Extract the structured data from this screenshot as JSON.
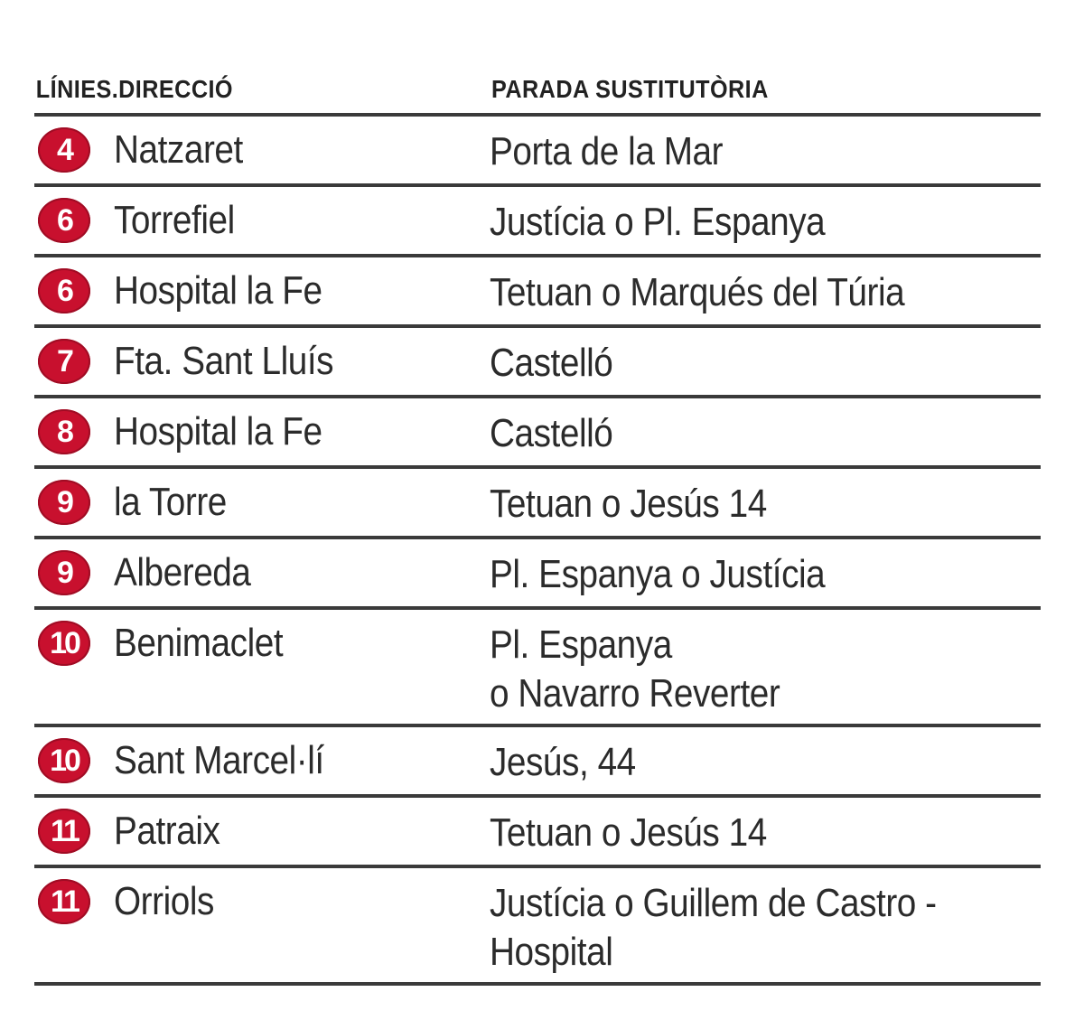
{
  "headers": {
    "lines_direction": "LÍNIES.DIRECCIÓ",
    "substitute_stop": "PARADA SUSTITUTÒRIA"
  },
  "accent_color": "#c8102e",
  "rows": [
    {
      "line": "4",
      "direction": "Natzaret",
      "stop": "Porta de la Mar"
    },
    {
      "line": "6",
      "direction": "Torrefiel",
      "stop": "Justícia o Pl. Espanya"
    },
    {
      "line": "6",
      "direction": "Hospital la Fe",
      "stop": "Tetuan o Marqués del Túria"
    },
    {
      "line": "7",
      "direction": "Fta. Sant Lluís",
      "stop": "Castelló"
    },
    {
      "line": "8",
      "direction": "Hospital la Fe",
      "stop": "Castelló"
    },
    {
      "line": "9",
      "direction": "la Torre",
      "stop": "Tetuan o Jesús 14"
    },
    {
      "line": "9",
      "direction": "Albereda",
      "stop": "Pl. Espanya o Justícia"
    },
    {
      "line": "10",
      "direction": "Benimaclet",
      "stop": "Pl. Espanya\no Navarro Reverter"
    },
    {
      "line": "10",
      "direction": "Sant Marcel·lí",
      "stop": "Jesús, 44"
    },
    {
      "line": "11",
      "direction": "Patraix",
      "stop": "Tetuan o Jesús 14"
    },
    {
      "line": "11",
      "direction": "Orriols",
      "stop": "Justícia o Guillem de Castro -\nHospital"
    }
  ]
}
